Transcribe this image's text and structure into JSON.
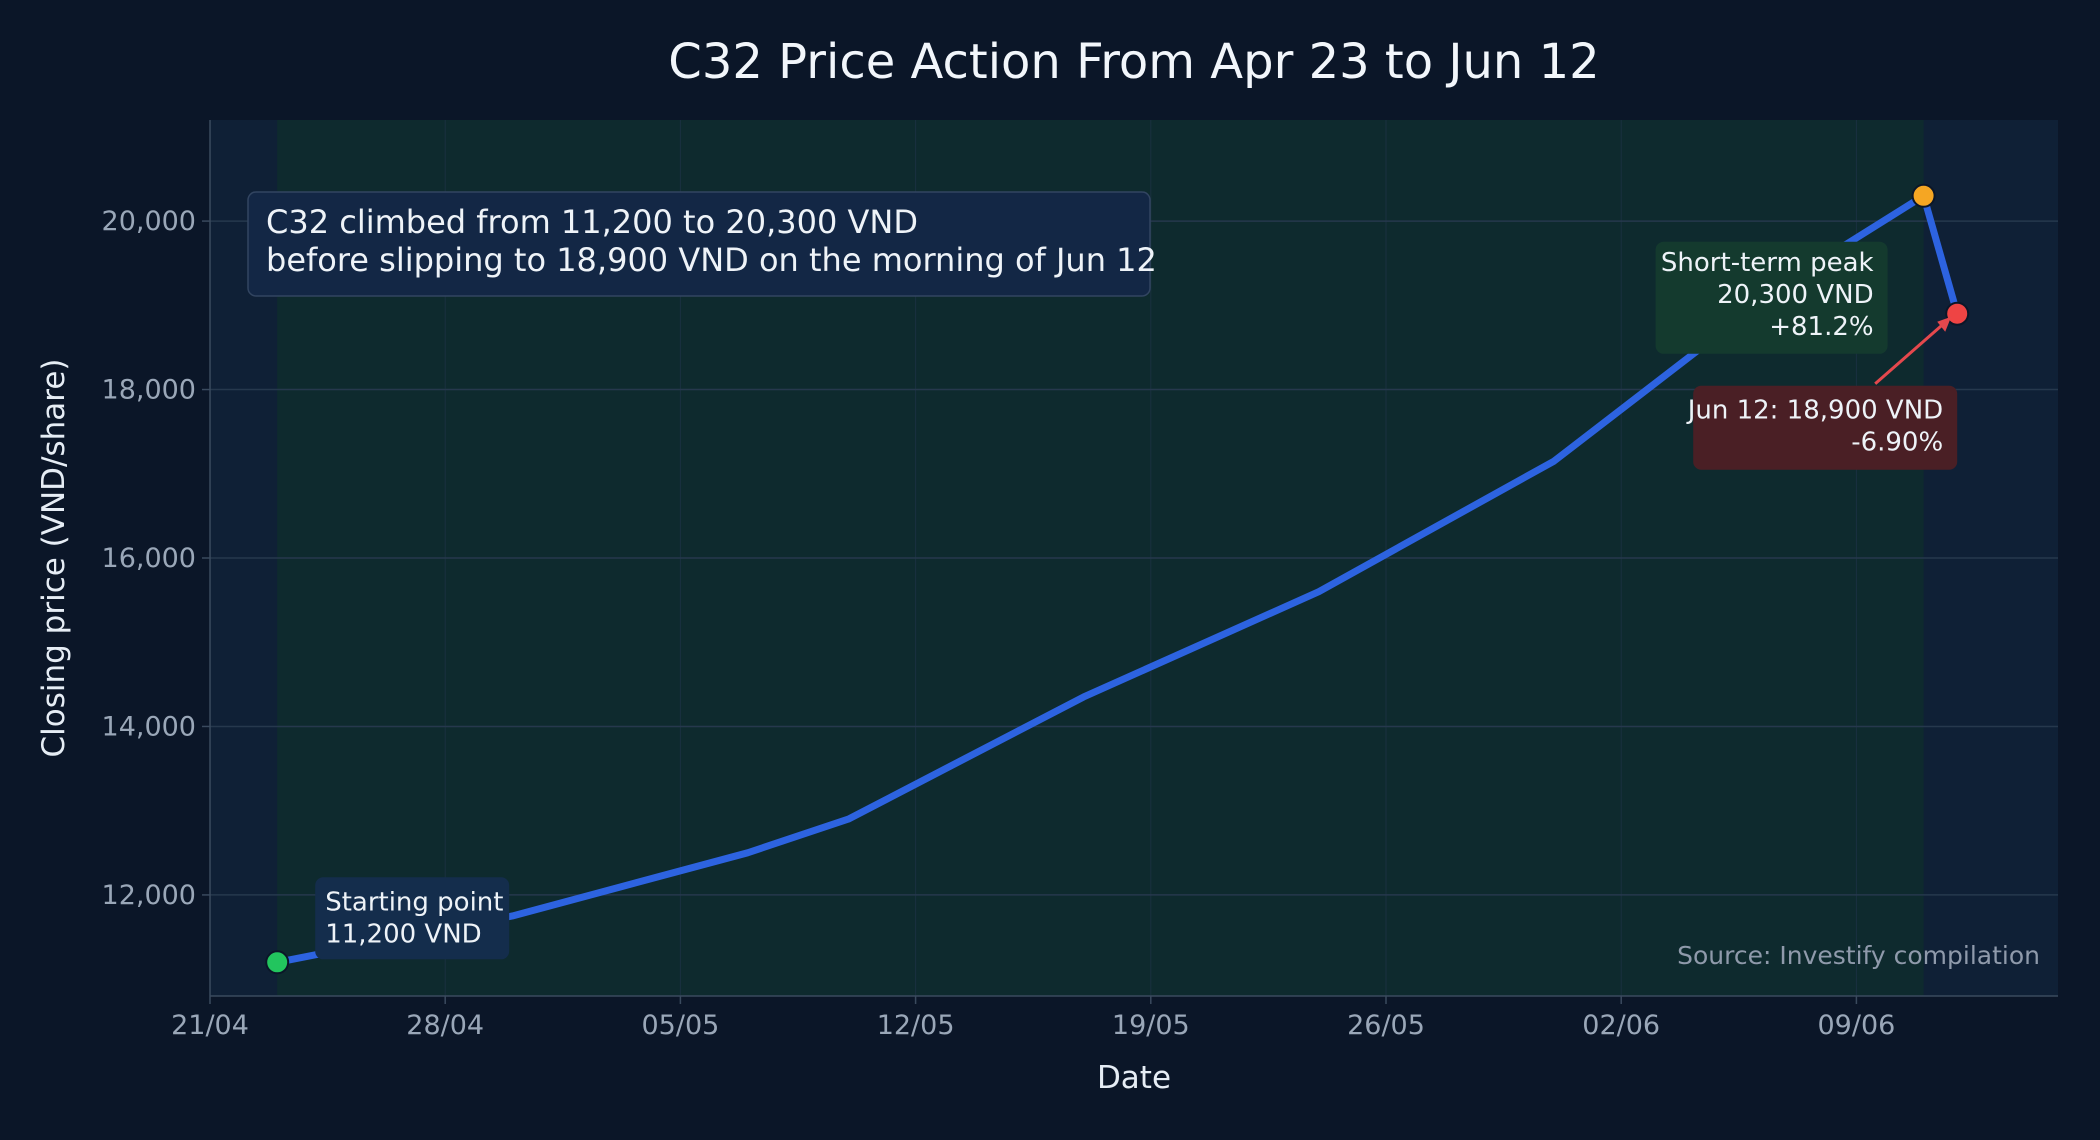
{
  "chart_data": {
    "type": "line",
    "title": "C32 Price Action From Apr 23 to Jun 12",
    "xlabel": "Date",
    "ylabel": "Closing price (VND/share)",
    "x_ticks": [
      "21/04",
      "28/04",
      "05/05",
      "12/05",
      "19/05",
      "26/05",
      "02/06",
      "09/06"
    ],
    "x_tick_dates": [
      "2025-04-21",
      "2025-04-28",
      "2025-05-05",
      "2025-05-12",
      "2025-05-19",
      "2025-05-26",
      "2025-06-02",
      "2025-06-09"
    ],
    "y_ticks": [
      12000,
      14000,
      16000,
      18000,
      20000
    ],
    "y_tick_labels": [
      "12,000",
      "14,000",
      "16,000",
      "18,000",
      "20,000"
    ],
    "xlim": [
      "2025-04-21",
      "2025-06-15"
    ],
    "ylim": [
      10800,
      21200
    ],
    "grid": true,
    "highlight_range": [
      "2025-04-23",
      "2025-06-11"
    ],
    "series": [
      {
        "x": [
          "2025-04-23",
          "2025-04-30",
          "2025-05-07",
          "2025-05-10",
          "2025-05-17",
          "2025-05-24",
          "2025-05-31",
          "2025-06-07",
          "2025-06-11",
          "2025-06-12"
        ],
        "y": [
          11200,
          11750,
          12500,
          12900,
          14350,
          15600,
          17150,
          19300,
          20300,
          18900
        ],
        "color": "#2d63e0"
      }
    ],
    "markers": [
      {
        "x": "2025-04-23",
        "y": 11200,
        "color": "#22c55e"
      },
      {
        "x": "2025-06-11",
        "y": 20300,
        "color": "#f5a623"
      },
      {
        "x": "2025-06-12",
        "y": 18900,
        "color": "#ef4444"
      }
    ],
    "annotations": {
      "start": [
        "Starting point",
        "11,200 VND"
      ],
      "peak": [
        "Short-term peak",
        "20,300 VND",
        "+81.2%"
      ],
      "end": [
        "Jun 12: 18,900 VND",
        "-6.90%"
      ]
    },
    "callout": [
      "C32 climbed from 11,200 to 20,300 VND",
      "before slipping to 18,900 VND on the morning of Jun 12"
    ],
    "source": "Source: Investify compilation"
  },
  "colors": {
    "background": "#0b1628",
    "plot_area": "#0f2036",
    "highlight": "#0e2a2e",
    "line": "#2d63e0",
    "start": "#22c55e",
    "peak": "#f5a623",
    "end": "#ef4444"
  }
}
